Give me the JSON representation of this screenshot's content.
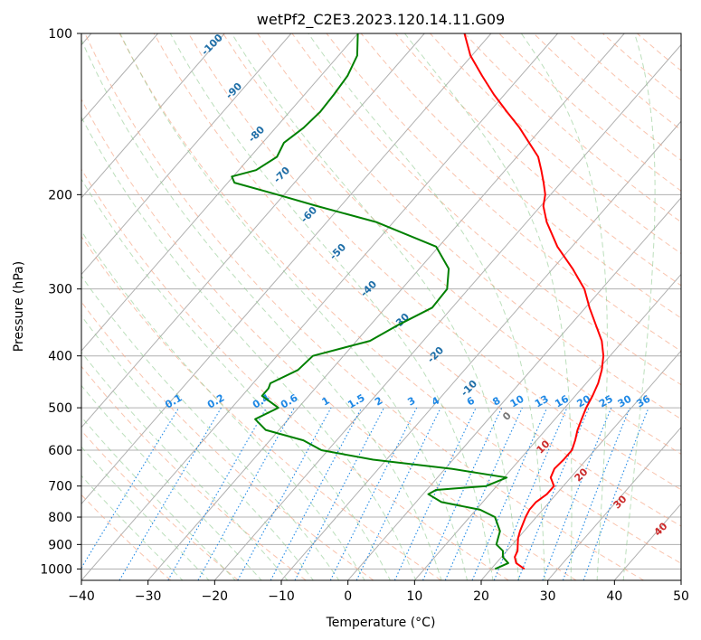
{
  "chart_data": {
    "type": "line",
    "title": "wetPf2_C2E3.2023.120.14.11.G09",
    "xlabel": "Temperature (°C)",
    "ylabel": "Pressure (hPa)",
    "xlim": [
      -40,
      50
    ],
    "ylim": [
      1050,
      100
    ],
    "y_scale": "log",
    "grid": true,
    "x_ticks": [
      "−40",
      "−30",
      "−20",
      "−10",
      "0",
      "10",
      "20",
      "30",
      "40",
      "50"
    ],
    "x_tick_values": [
      -40,
      -30,
      -20,
      -10,
      0,
      10,
      20,
      30,
      40,
      50
    ],
    "y_ticks": [
      "100",
      "200",
      "300",
      "400",
      "500",
      "600",
      "700",
      "800",
      "900",
      "1000"
    ],
    "y_tick_values": [
      100,
      200,
      300,
      400,
      500,
      600,
      700,
      800,
      900,
      1000
    ],
    "mixing_ratio_labels": [
      "0.1",
      "0.2",
      "0.4",
      "0.6",
      "1",
      "1.5",
      "2",
      "3",
      "4",
      "6",
      "8",
      "10",
      "13",
      "16",
      "20",
      "25",
      "30",
      "36"
    ],
    "mixing_ratio_values": [
      0.1,
      0.2,
      0.4,
      0.6,
      1,
      1.5,
      2,
      3,
      4,
      6,
      8,
      10,
      13,
      16,
      20,
      25,
      30,
      36
    ],
    "moist_adiabat_labels": [
      "-100",
      "-90",
      "-80",
      "-70",
      "-60",
      "-50",
      "-40",
      "-30",
      "-20",
      "-10",
      "0",
      "10",
      "20",
      "30",
      "40"
    ],
    "series": [
      {
        "color": "#ff0000",
        "pressure": [
          1000,
          975,
          950,
          925,
          900,
          875,
          850,
          800,
          775,
          750,
          725,
          700,
          675,
          650,
          625,
          600,
          575,
          550,
          525,
          500,
          475,
          450,
          425,
          400,
          375,
          350,
          325,
          300,
          275,
          250,
          225,
          210,
          200,
          190,
          180,
          170,
          160,
          150,
          140,
          130,
          120,
          110,
          100
        ],
        "temperature": [
          25.0,
          23.0,
          22.0,
          21.6,
          20.8,
          20.0,
          19.4,
          18.4,
          18.0,
          18.0,
          18.6,
          18.6,
          17.0,
          16.4,
          16.6,
          16.6,
          15.8,
          14.8,
          14.0,
          13.2,
          12.6,
          11.8,
          10.6,
          9.0,
          6.8,
          3.8,
          0.6,
          -2.6,
          -7.0,
          -12.2,
          -17.0,
          -19.6,
          -20.8,
          -22.6,
          -24.6,
          -26.8,
          -30.0,
          -33.4,
          -37.4,
          -41.6,
          -45.8,
          -50.2,
          -54.0
        ]
      },
      {
        "color": "#008000",
        "pressure": [
          1000,
          975,
          950,
          925,
          900,
          875,
          850,
          800,
          775,
          750,
          725,
          712,
          700,
          675,
          650,
          625,
          600,
          575,
          550,
          525,
          500,
          475,
          460,
          450,
          425,
          400,
          375,
          350,
          325,
          300,
          275,
          250,
          225,
          210,
          200,
          190,
          185,
          180,
          170,
          160,
          150,
          140,
          130,
          120,
          110,
          100
        ],
        "temperature": [
          20.6,
          21.8,
          20.2,
          19.4,
          17.6,
          17.0,
          16.4,
          13.8,
          10.6,
          3.8,
          0.8,
          1.4,
          8.4,
          10.4,
          1.0,
          -12.0,
          -21.0,
          -25.0,
          -32.0,
          -35.0,
          -33.0,
          -37.0,
          -37.0,
          -37.4,
          -35.0,
          -34.6,
          -28.0,
          -25.8,
          -23.0,
          -23.2,
          -25.6,
          -30.4,
          -42.6,
          -53.6,
          -61.0,
          -69.0,
          -70.2,
          -67.4,
          -66.0,
          -66.8,
          -65.8,
          -65.4,
          -65.6,
          -66.0,
          -67.2,
          -70.0
        ]
      }
    ]
  }
}
